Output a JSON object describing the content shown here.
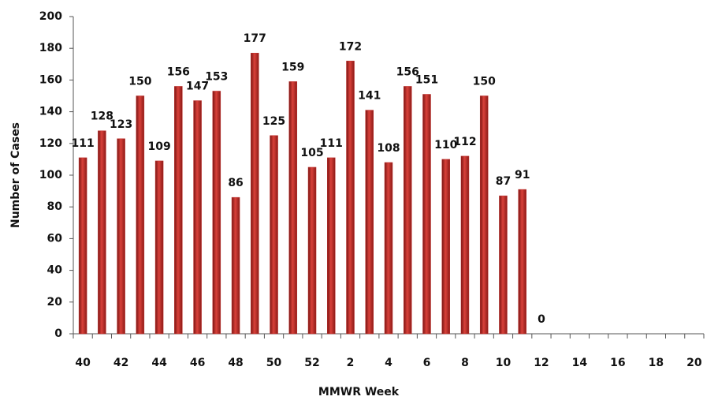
{
  "chart_data": {
    "type": "bar",
    "x_label": "MMWR Week",
    "y_label": "Number of Cases",
    "categories": [
      "40",
      null,
      "42",
      null,
      "44",
      null,
      "46",
      null,
      "48",
      null,
      "50",
      null,
      "52",
      null,
      "2",
      null,
      "4",
      null,
      "6",
      null,
      "8",
      null,
      "10",
      null,
      "12",
      null,
      "14",
      null,
      "16",
      null,
      "18",
      null,
      "20"
    ],
    "values": [
      111,
      128,
      123,
      150,
      109,
      156,
      147,
      153,
      86,
      177,
      125,
      159,
      105,
      111,
      172,
      141,
      108,
      156,
      151,
      110,
      112,
      150,
      87,
      91,
      0,
      null,
      null,
      null,
      null,
      null,
      null,
      null,
      null
    ],
    "color": "#c0302d",
    "ylim": [
      0,
      200
    ],
    "yticks": [
      0,
      20,
      40,
      60,
      80,
      100,
      120,
      140,
      160,
      180,
      200
    ]
  }
}
